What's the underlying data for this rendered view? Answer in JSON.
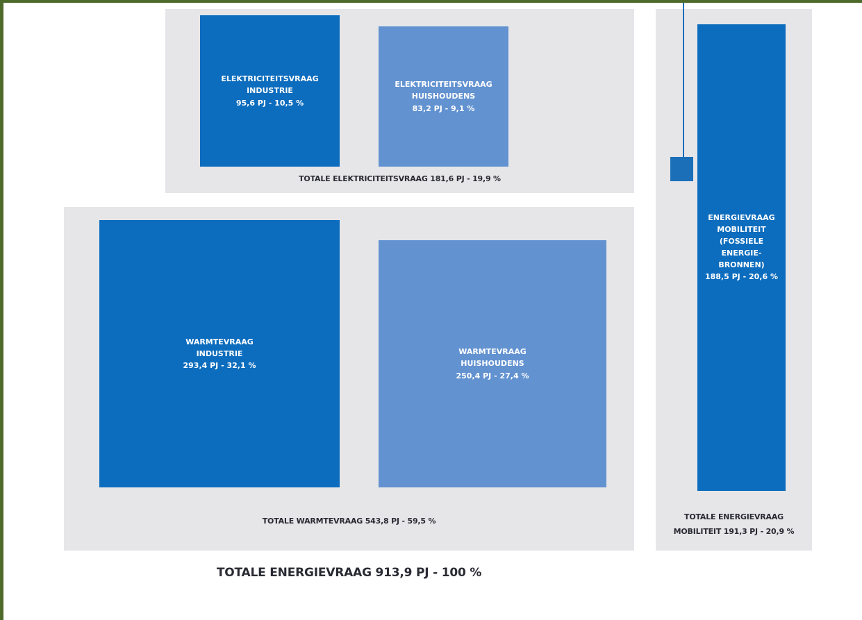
{
  "colors": {
    "industrie": "#0c6cbd",
    "huishoudens": "#6292d0",
    "mobiliteit": "#0c6cbd",
    "panel": "#e6e6e9",
    "frame": "#4e6a2a"
  },
  "elektriciteit": {
    "industrie": {
      "line1": "ELEKTRICITEITSVRAAG",
      "line2": "INDUSTRIE",
      "value": "95,6 PJ - 10,5 %"
    },
    "huishoudens": {
      "line1": "ELEKTRICITEITSVRAAG",
      "line2": "HUISHOUDENS",
      "value": "83,2 PJ - 9,1 %"
    },
    "total": "TOTALE ELEKTRICITEITSVRAAG 181,6 PJ - 19,9 %"
  },
  "warmte": {
    "industrie": {
      "line1": "WARMTEVRAAG",
      "line2": "INDUSTRIE",
      "value": "293,4 PJ - 32,1 %"
    },
    "huishoudens": {
      "line1": "WARMTEVRAAG",
      "line2": "HUISHOUDENS",
      "value": "250,4 PJ - 27,4 %"
    },
    "total": "TOTALE WARMTEVRAAG 543,8 PJ - 59,5 %"
  },
  "mobiliteit": {
    "fossiel": {
      "line1": "ENERGIEVRAAG",
      "line2": "MOBILITEIT",
      "line3": "(FOSSIELE",
      "line4": "ENERGIE-",
      "line5": "BRONNEN)",
      "value": "188,5 PJ - 20,6 %"
    },
    "total_line1": "TOTALE ENERGIEVRAAG",
    "total_line2": "MOBILITEIT 191,3 PJ - 20,9 %"
  },
  "grand_total": "TOTALE ENERGIEVRAAG 913,9 PJ - 100 %"
}
